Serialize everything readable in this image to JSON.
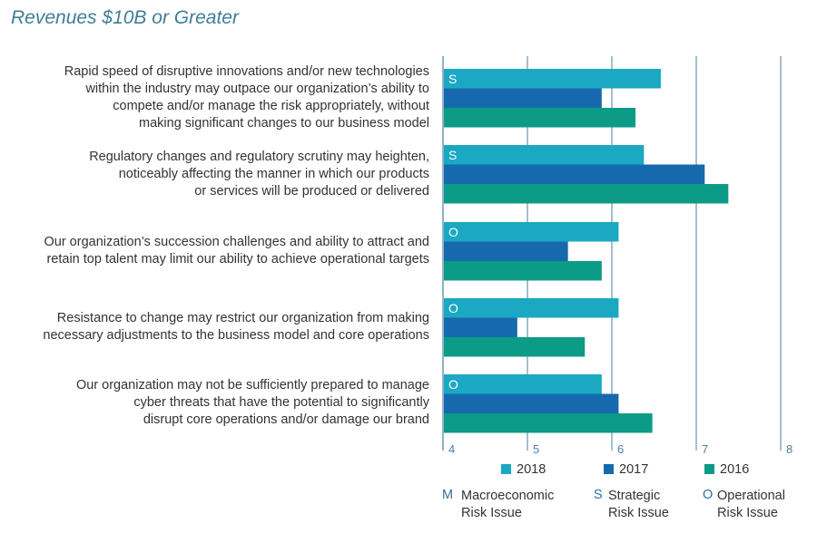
{
  "title": "Revenues $10B or Greater",
  "colors": {
    "2018": "#1aa8c2",
    "2017": "#1769ad",
    "2016": "#0b9b86",
    "axis": "#4a7fa3",
    "grid": "#4a7fa3"
  },
  "chart_data": {
    "type": "bar",
    "orientation": "horizontal",
    "title": "Revenues $10B or Greater",
    "categories": [
      "Rapid speed of disruptive innovations and/or new technologies within the industry may outpace our organization’s ability to compete and/or manage the risk appropriately, without making significant changes to our business model",
      "Regulatory changes and regulatory scrutiny may heighten, noticeably affecting the manner in which our products or services will be produced or delivered",
      "Our organization’s succession challenges and ability to attract and retain top talent may limit our ability to achieve operational targets",
      "Resistance to change may restrict our organization from making necessary adjustments to the business model and core operations",
      "Our organization may not be sufficiently prepared to manage cyber threats that have the potential to significantly disrupt core operations and/or damage our brand"
    ],
    "category_lines": [
      [
        "Rapid speed of disruptive innovations and/or new technologies",
        "within the industry may outpace our organization’s ability to",
        "compete and/or manage the risk appropriately, without",
        "making significant changes to our business model"
      ],
      [
        "Regulatory changes and regulatory scrutiny may heighten,",
        "noticeably affecting the manner in which our products",
        "or services will be produced or delivered"
      ],
      [
        "Our organization’s succession challenges and ability to attract and",
        "retain top talent may limit our ability to achieve operational targets"
      ],
      [
        "Resistance to change may restrict our organization from making",
        "necessary adjustments to the business model and core operations"
      ],
      [
        "Our organization may not be sufficiently prepared to manage",
        "cyber threats that have the potential to significantly",
        "disrupt core operations and/or damage our brand"
      ]
    ],
    "risk_codes": [
      "S",
      "S",
      "O",
      "O",
      "O"
    ],
    "series": [
      {
        "name": "2018",
        "values": [
          6.58,
          6.38,
          6.08,
          6.08,
          5.88
        ]
      },
      {
        "name": "2017",
        "values": [
          5.88,
          7.1,
          5.48,
          4.88,
          6.08
        ]
      },
      {
        "name": "2016",
        "values": [
          6.28,
          7.38,
          5.88,
          5.68,
          6.48
        ]
      }
    ],
    "xlim": [
      4,
      8
    ],
    "x_ticks": [
      "4",
      "5",
      "6",
      "7",
      "8"
    ],
    "grid": true,
    "legend_position": "bottom"
  },
  "risk_legend": [
    {
      "code": "M",
      "line1": "Macroeconomic",
      "line2": "Risk Issue"
    },
    {
      "code": "S",
      "line1": "Strategic",
      "line2": "Risk Issue"
    },
    {
      "code": "O",
      "line1": "Operational",
      "line2": "Risk Issue"
    }
  ]
}
